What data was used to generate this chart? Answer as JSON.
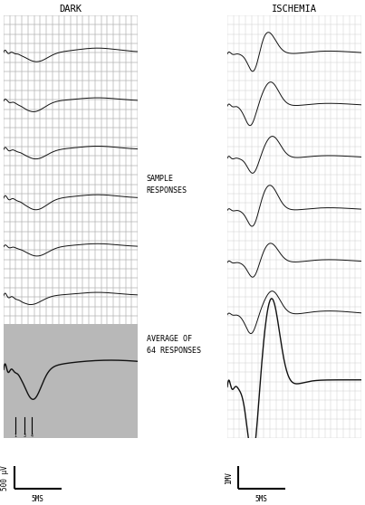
{
  "title_left": "DARK",
  "title_right": "ISCHEMIA",
  "label_sample": "SAMPLE\nRESPONSES",
  "label_average": "AVERAGE OF\n64 RESPONSES",
  "scale_left_label": "500 μV",
  "scale_right_label": "1MV",
  "scale_time_label": "5MS",
  "grid_color": "#c8c8c8",
  "grid_color_fine": "#d8d8d8",
  "bg_panel": "#e0e0e0",
  "bg_avg_left": "#b8b8b8",
  "line_color": "#111111",
  "fig_bg": "#ffffff",
  "n_dark_samples": 6,
  "n_isch_samples": 6
}
